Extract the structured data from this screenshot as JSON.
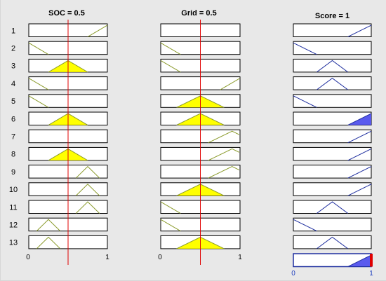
{
  "inputs": [
    {
      "name": "SOC",
      "title": "SOC = 0.5",
      "value": 0.5
    },
    {
      "name": "Grid",
      "title": "Grid = 0.5",
      "value": 0.5
    }
  ],
  "output": {
    "name": "Score",
    "title": "Score = 1",
    "value": 1
  },
  "axis": {
    "min_label": "0",
    "max_label": "1",
    "min": 0,
    "max": 1
  },
  "rules": [
    {
      "label": "1",
      "soc": [
        0.75,
        1.0,
        1.25
      ],
      "grid": null,
      "score": [
        0.7,
        1.0,
        1.3
      ]
    },
    {
      "label": "2",
      "soc": [
        -0.25,
        0.0,
        0.25
      ],
      "grid": [
        -0.25,
        0.0,
        0.25
      ],
      "score": [
        -0.3,
        0.0,
        0.3
      ]
    },
    {
      "label": "3",
      "soc": [
        0.25,
        0.5,
        0.75
      ],
      "grid": [
        -0.25,
        0.0,
        0.25
      ],
      "score": [
        0.3,
        0.5,
        0.7
      ]
    },
    {
      "label": "4",
      "soc": [
        -0.25,
        0.0,
        0.25
      ],
      "grid": [
        0.75,
        1.0,
        1.25
      ],
      "score": [
        0.3,
        0.5,
        0.7
      ]
    },
    {
      "label": "5",
      "soc": [
        -0.25,
        0.0,
        0.25
      ],
      "grid": [
        0.2,
        0.5,
        0.8
      ],
      "score": [
        -0.3,
        0.0,
        0.3
      ]
    },
    {
      "label": "6",
      "soc": [
        0.25,
        0.5,
        0.75
      ],
      "grid": [
        0.2,
        0.5,
        0.8
      ],
      "score": [
        0.7,
        1.0,
        1.3
      ]
    },
    {
      "label": "7",
      "soc": null,
      "grid": [
        0.6,
        0.9,
        1.2
      ],
      "score": [
        0.7,
        1.0,
        1.3
      ]
    },
    {
      "label": "8",
      "soc": [
        0.25,
        0.5,
        0.75
      ],
      "grid": [
        0.6,
        0.9,
        1.2
      ],
      "score": [
        0.7,
        1.0,
        1.3
      ]
    },
    {
      "label": "9",
      "soc": [
        0.6,
        0.75,
        0.9
      ],
      "grid": [
        0.6,
        0.9,
        1.2
      ],
      "score": [
        0.7,
        1.0,
        1.3
      ]
    },
    {
      "label": "10",
      "soc": [
        0.6,
        0.75,
        0.9
      ],
      "grid": [
        0.2,
        0.5,
        0.8
      ],
      "score": [
        0.7,
        1.0,
        1.3
      ]
    },
    {
      "label": "11",
      "soc": [
        0.6,
        0.75,
        0.9
      ],
      "grid": [
        -0.25,
        0.0,
        0.25
      ],
      "score": [
        0.3,
        0.5,
        0.7
      ]
    },
    {
      "label": "12",
      "soc": [
        0.1,
        0.25,
        0.4
      ],
      "grid": [
        -0.25,
        0.0,
        0.25
      ],
      "score": [
        -0.3,
        0.0,
        0.3
      ]
    },
    {
      "label": "13",
      "soc": [
        0.1,
        0.25,
        0.4
      ],
      "grid": [
        0.2,
        0.5,
        0.8
      ],
      "score": [
        0.3,
        0.5,
        0.7
      ]
    }
  ],
  "colors": {
    "background": "#e8e8e8",
    "input_mf": "#8a9a2a",
    "input_fill": "#ffff00",
    "output_mf": "#1f2f9f",
    "output_fill": "#5a5aee",
    "indicator": "#e00000"
  }
}
